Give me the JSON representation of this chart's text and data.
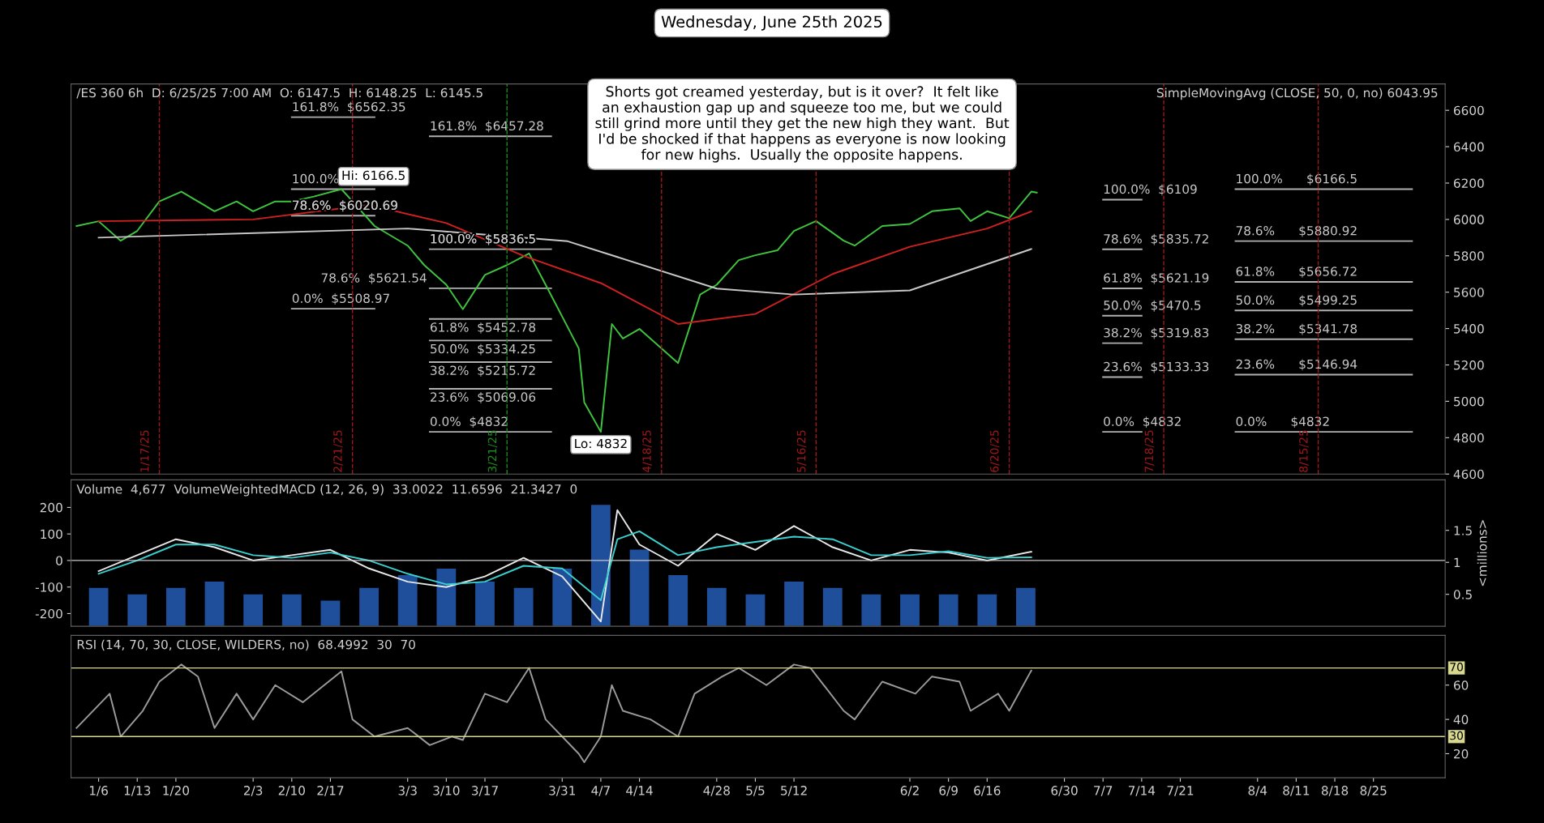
{
  "chart_data": [
    {
      "type": "line",
      "title": "Wednesday, June 25th 2025",
      "annotations": [
        "/ES 360 6h  D: 6/25/25 7:00 AM  O: 6147.5  H: 6148.25  L: 6145.5",
        "Shorts got creamed yesterday, but is it over?  It felt like\nan exhaustion gap up and squeeze too me, but we could\nstill grind more until they get the new high they want.  But\nI'd be shocked if that happens as everyone is now looking\nfor new highs.  Usually the opposite happens.",
        "SimpleMovingAvg (CLOSE, 50, 0, no) 6043.95",
        {
          "text": "Hi: 6166.5",
          "x": "2025-02-19",
          "y": 6166.5
        },
        {
          "text": "Lo: 4832",
          "x": "2025-04-07",
          "y": 4832
        }
      ],
      "series": [
        {
          "name": "161.8%  $6562.35",
          "color": "#b0b0b0",
          "x": [
            "2025-02-10",
            "2025-02-25"
          ],
          "values": [
            6562.35,
            6562.35
          ]
        },
        {
          "name": "100.0%",
          "color": "#b0b0b0",
          "x": [
            "2025-02-10",
            "2025-02-25"
          ],
          "values": [
            6166.5,
            6166.5
          ]
        },
        {
          "name": "78.6%  $6020.69",
          "color": "#b0b0b0",
          "x": [
            "2025-02-10",
            "2025-02-25"
          ],
          "values": [
            6020.69,
            6020.69
          ]
        },
        {
          "name": "0.0%  $5508.97",
          "color": "#b0b0b0",
          "x": [
            "2025-02-10",
            "2025-02-25"
          ],
          "values": [
            5508.97,
            5508.97
          ]
        },
        {
          "name": "161.8%  $6457.28",
          "color": "#b0b0b0",
          "x": [
            "2025-03-07",
            "2025-03-29"
          ],
          "values": [
            6457.28,
            6457.28
          ]
        },
        {
          "name": "100.0%  $5836.5",
          "color": "#b0b0b0",
          "x": [
            "2025-03-07",
            "2025-03-29"
          ],
          "values": [
            5836.5,
            5836.5
          ]
        },
        {
          "name": "78.6%  $5621.54",
          "color": "#b0b0b0",
          "x": [
            "2025-03-07",
            "2025-03-29"
          ],
          "values": [
            5621.54,
            5621.54
          ]
        },
        {
          "name": "61.8%  $5452.78",
          "color": "#b0b0b0",
          "x": [
            "2025-03-07",
            "2025-03-29"
          ],
          "values": [
            5452.78,
            5452.78
          ]
        },
        {
          "name": "50.0%  $5334.25",
          "color": "#b0b0b0",
          "x": [
            "2025-03-07",
            "2025-03-29"
          ],
          "values": [
            5334.25,
            5334.25
          ]
        },
        {
          "name": "38.2%  $5215.72",
          "color": "#b0b0b0",
          "x": [
            "2025-03-07",
            "2025-03-29"
          ],
          "values": [
            5215.72,
            5215.72
          ]
        },
        {
          "name": "23.6%  $5069.06",
          "color": "#b0b0b0",
          "x": [
            "2025-03-07",
            "2025-03-29"
          ],
          "values": [
            5069.06,
            5069.06
          ]
        },
        {
          "name": "0.0%  $4832",
          "color": "#b0b0b0",
          "x": [
            "2025-03-07",
            "2025-03-29"
          ],
          "values": [
            4832,
            4832
          ]
        },
        {
          "name": "100.0%  $6109",
          "color": "#b0b0b0",
          "x": [
            "2025-07-07",
            "2025-07-14"
          ],
          "values": [
            6109,
            6109
          ]
        },
        {
          "name": "78.6%  $5835.72",
          "color": "#b0b0b0",
          "x": [
            "2025-07-07",
            "2025-07-14"
          ],
          "values": [
            5835.72,
            5835.72
          ]
        },
        {
          "name": "61.8%  $5621.19",
          "color": "#b0b0b0",
          "x": [
            "2025-07-07",
            "2025-07-14"
          ],
          "values": [
            5621.19,
            5621.19
          ]
        },
        {
          "name": "50.0%  $5470.5",
          "color": "#b0b0b0",
          "x": [
            "2025-07-07",
            "2025-07-14"
          ],
          "values": [
            5470.5,
            5470.5
          ]
        },
        {
          "name": "38.2%  $5319.83",
          "color": "#b0b0b0",
          "x": [
            "2025-07-07",
            "2025-07-14"
          ],
          "values": [
            5319.83,
            5319.83
          ]
        },
        {
          "name": "23.6%  $5133.33",
          "color": "#b0b0b0",
          "x": [
            "2025-07-07",
            "2025-07-14"
          ],
          "values": [
            5133.33,
            5133.33
          ]
        },
        {
          "name": "0.0%  $4832",
          "color": "#b0b0b0",
          "x": [
            "2025-07-07",
            "2025-07-14"
          ],
          "values": [
            4832,
            4832
          ]
        },
        {
          "name": "100.0%      $6166.5",
          "color": "#b0b0b0",
          "x": [
            "2025-07-31",
            "2025-09-01"
          ],
          "values": [
            6166.5,
            6166.5
          ]
        },
        {
          "name": "78.6%      $5880.92",
          "color": "#b0b0b0",
          "x": [
            "2025-07-31",
            "2025-09-01"
          ],
          "values": [
            5880.92,
            5880.92
          ]
        },
        {
          "name": "61.8%      $5656.72",
          "color": "#b0b0b0",
          "x": [
            "2025-07-31",
            "2025-09-01"
          ],
          "values": [
            5656.72,
            5656.72
          ]
        },
        {
          "name": "50.0%      $5499.25",
          "color": "#b0b0b0",
          "x": [
            "2025-07-31",
            "2025-09-01"
          ],
          "values": [
            5499.25,
            5499.25
          ]
        },
        {
          "name": "38.2%      $5341.78",
          "color": "#b0b0b0",
          "x": [
            "2025-07-31",
            "2025-09-01"
          ],
          "values": [
            5341.78,
            5341.78
          ]
        },
        {
          "name": "23.6%      $5146.94",
          "color": "#b0b0b0",
          "x": [
            "2025-07-31",
            "2025-09-01"
          ],
          "values": [
            5146.94,
            5146.94
          ]
        },
        {
          "name": "0.0%      $4832",
          "color": "#b0b0b0",
          "x": [
            "2025-07-31",
            "2025-09-01"
          ],
          "values": [
            4832,
            4832
          ]
        },
        {
          "color": "#3ec43e",
          "x": [
            "2025-01-02",
            "2025-01-06",
            "2025-01-10",
            "2025-01-13",
            "2025-01-17",
            "2025-01-21",
            "2025-01-27",
            "2025-01-31",
            "2025-02-03",
            "2025-02-07",
            "2025-02-10",
            "2025-02-14",
            "2025-02-19",
            "2025-02-21",
            "2025-02-25",
            "2025-03-03",
            "2025-03-06",
            "2025-03-10",
            "2025-03-13",
            "2025-03-17",
            "2025-03-21",
            "2025-03-25",
            "2025-03-28",
            "2025-04-03",
            "2025-04-04",
            "2025-04-07",
            "2025-04-09",
            "2025-04-11",
            "2025-04-14",
            "2025-04-21",
            "2025-04-25",
            "2025-04-28",
            "2025-05-02",
            "2025-05-05",
            "2025-05-09",
            "2025-05-12",
            "2025-05-16",
            "2025-05-21",
            "2025-05-23",
            "2025-05-28",
            "2025-06-02",
            "2025-06-06",
            "2025-06-11",
            "2025-06-13",
            "2025-06-16",
            "2025-06-20",
            "2025-06-24",
            "2025-06-25"
          ],
          "values": [
            5964,
            5990,
            5883,
            5937,
            6099,
            6153,
            6045,
            6099,
            6045,
            6099,
            6099,
            6126,
            6166.5,
            6099,
            5964,
            5856,
            5749,
            5641,
            5506,
            5695,
            5749,
            5813,
            5641,
            5291,
            4994,
            4832,
            5425,
            5345,
            5398,
            5210,
            5587,
            5641,
            5776,
            5803,
            5830,
            5937,
            5991,
            5883,
            5856,
            5964,
            5975,
            6045,
            6061,
            5991,
            6045,
            6007,
            6153,
            6147.5
          ]
        },
        {
          "color": "#d02020",
          "x": [
            "2025-01-06",
            "2025-02-03",
            "2025-02-24",
            "2025-03-10",
            "2025-03-24",
            "2025-04-07",
            "2025-04-21",
            "2025-05-05",
            "2025-05-19",
            "2025-06-02",
            "2025-06-16",
            "2025-06-24"
          ],
          "values": [
            5990,
            6000,
            6080,
            5980,
            5800,
            5650,
            5425,
            5480,
            5700,
            5850,
            5950,
            6044
          ]
        },
        {
          "color": "#c8c8c8",
          "x": [
            "2025-01-06",
            "2025-03-03",
            "2025-04-01",
            "2025-04-28",
            "2025-05-12",
            "2025-06-02",
            "2025-06-24"
          ],
          "values": [
            5900,
            5950,
            5880,
            5620,
            5587,
            5610,
            5837
          ]
        }
      ],
      "xlim": [
        "2025-01-01",
        "2025-09-07"
      ],
      "ylim": [
        4600,
        6745
      ],
      "yticks": [
        4600,
        4800,
        5000,
        5200,
        5400,
        5600,
        5800,
        6000,
        6200,
        6400,
        6600
      ],
      "tick_labels": "y",
      "ref_lines": [
        {
          "axis": "x",
          "value": "2025-01-17",
          "label": "1/17/25",
          "color": "#a01818",
          "line_style": "dashed"
        },
        {
          "axis": "x",
          "value": "2025-02-21",
          "label": "2/21/25",
          "color": "#a01818",
          "line_style": "dashed"
        },
        {
          "axis": "x",
          "value": "2025-03-21",
          "label": "3/21/25",
          "color": "#1e8a1e",
          "line_style": "dashed"
        },
        {
          "axis": "x",
          "value": "2025-04-18",
          "label": "4/18/25",
          "color": "#a01818",
          "line_style": "dashed"
        },
        {
          "axis": "x",
          "value": "2025-05-16",
          "label": "5/16/25",
          "color": "#a01818",
          "line_style": "dashed"
        },
        {
          "axis": "x",
          "value": "2025-06-20",
          "label": "6/20/25",
          "color": "#a01818",
          "line_style": "dashed"
        },
        {
          "axis": "x",
          "value": "2025-07-18",
          "label": "7/18/25",
          "color": "#a01818",
          "line_style": "dashed"
        },
        {
          "axis": "x",
          "value": "2025-08-15",
          "label": "8/15/25",
          "color": "#a01818",
          "line_style": "dashed"
        }
      ]
    },
    {
      "type": "line",
      "y2label": "<millions>",
      "annotations": [
        "Volume  4,677  VolumeWeightedMACD (12, 26, 9)  33.0022  11.6596  21.3427  0"
      ],
      "series": [
        {
          "type": "bar",
          "axis": "y2",
          "color": "#1f4e9a",
          "x": [
            "2025-01-06",
            "2025-01-13",
            "2025-01-20",
            "2025-01-27",
            "2025-02-03",
            "2025-02-10",
            "2025-02-17",
            "2025-02-24",
            "2025-03-03",
            "2025-03-10",
            "2025-03-17",
            "2025-03-24",
            "2025-03-31",
            "2025-04-07",
            "2025-04-14",
            "2025-04-21",
            "2025-04-28",
            "2025-05-05",
            "2025-05-12",
            "2025-05-19",
            "2025-05-26",
            "2025-06-02",
            "2025-06-09",
            "2025-06-16",
            "2025-06-23"
          ],
          "values": [
            0.6,
            0.5,
            0.6,
            0.7,
            0.5,
            0.5,
            0.4,
            0.6,
            0.8,
            0.9,
            0.7,
            0.6,
            0.9,
            1.9,
            1.2,
            0.8,
            0.6,
            0.5,
            0.7,
            0.6,
            0.5,
            0.5,
            0.5,
            0.5,
            0.6
          ]
        },
        {
          "color": "#e8e8e8",
          "x": [
            "2025-01-06",
            "2025-01-13",
            "2025-01-20",
            "2025-01-27",
            "2025-02-03",
            "2025-02-10",
            "2025-02-17",
            "2025-02-24",
            "2025-03-03",
            "2025-03-10",
            "2025-03-17",
            "2025-03-24",
            "2025-03-31",
            "2025-04-07",
            "2025-04-10",
            "2025-04-14",
            "2025-04-21",
            "2025-04-28",
            "2025-05-05",
            "2025-05-12",
            "2025-05-19",
            "2025-05-26",
            "2025-06-02",
            "2025-06-09",
            "2025-06-16",
            "2025-06-24"
          ],
          "values": [
            -40,
            20,
            80,
            50,
            0,
            20,
            40,
            -30,
            -80,
            -100,
            -60,
            10,
            -60,
            -230,
            190,
            60,
            -20,
            100,
            40,
            130,
            50,
            0,
            40,
            30,
            0,
            33
          ]
        },
        {
          "color": "#3ad0d0",
          "x": [
            "2025-01-06",
            "2025-01-13",
            "2025-01-20",
            "2025-01-27",
            "2025-02-03",
            "2025-02-10",
            "2025-02-17",
            "2025-02-24",
            "2025-03-03",
            "2025-03-10",
            "2025-03-17",
            "2025-03-24",
            "2025-03-31",
            "2025-04-07",
            "2025-04-10",
            "2025-04-14",
            "2025-04-21",
            "2025-04-28",
            "2025-05-05",
            "2025-05-12",
            "2025-05-19",
            "2025-05-26",
            "2025-06-02",
            "2025-06-09",
            "2025-06-16",
            "2025-06-24"
          ],
          "values": [
            -50,
            0,
            60,
            60,
            20,
            10,
            30,
            0,
            -50,
            -90,
            -80,
            -20,
            -30,
            -150,
            80,
            110,
            20,
            50,
            70,
            90,
            80,
            20,
            20,
            35,
            10,
            12
          ]
        }
      ],
      "xlim": [
        "2025-01-01",
        "2025-09-07"
      ],
      "ylim": [
        -248,
        304
      ],
      "yticks": [
        -200,
        -100,
        0,
        100,
        200
      ],
      "y2lim": [
        0,
        2.29
      ],
      "y2ticks": [
        0.5,
        1,
        1.5
      ],
      "tick_labels": "y",
      "ref_lines": [
        {
          "axis": "y",
          "value": 0,
          "color": "#c8c8c8",
          "line_style": "solid"
        }
      ]
    },
    {
      "type": "line",
      "annotations": [
        "RSI (14, 70, 30, CLOSE, WILDERS, no)  68.4992  30  70"
      ],
      "series": [
        {
          "color": "#9a9a9a",
          "x": [
            "2025-01-02",
            "2025-01-08",
            "2025-01-10",
            "2025-01-14",
            "2025-01-17",
            "2025-01-21",
            "2025-01-24",
            "2025-01-27",
            "2025-01-31",
            "2025-02-03",
            "2025-02-07",
            "2025-02-12",
            "2025-02-19",
            "2025-02-21",
            "2025-02-25",
            "2025-03-03",
            "2025-03-07",
            "2025-03-11",
            "2025-03-13",
            "2025-03-17",
            "2025-03-21",
            "2025-03-25",
            "2025-03-28",
            "2025-04-03",
            "2025-04-04",
            "2025-04-07",
            "2025-04-09",
            "2025-04-11",
            "2025-04-16",
            "2025-04-21",
            "2025-04-24",
            "2025-04-29",
            "2025-05-02",
            "2025-05-07",
            "2025-05-12",
            "2025-05-15",
            "2025-05-21",
            "2025-05-23",
            "2025-05-28",
            "2025-06-03",
            "2025-06-06",
            "2025-06-11",
            "2025-06-13",
            "2025-06-18",
            "2025-06-20",
            "2025-06-24"
          ],
          "values": [
            35,
            55,
            30,
            45,
            62,
            72,
            65,
            35,
            55,
            40,
            60,
            50,
            68,
            40,
            30,
            35,
            25,
            30,
            28,
            55,
            50,
            70,
            40,
            20,
            15,
            30,
            60,
            45,
            40,
            30,
            55,
            65,
            70,
            60,
            72,
            70,
            45,
            40,
            62,
            55,
            65,
            62,
            45,
            55,
            45,
            68.4992
          ]
        }
      ],
      "xlim": [
        "2025-01-01",
        "2025-09-07"
      ],
      "ylim": [
        6,
        89
      ],
      "yticks": [
        20,
        40,
        60
      ],
      "xticks": [
        {
          "value": "2025-01-06",
          "label": "1/6"
        },
        {
          "value": "2025-01-13",
          "label": "1/13"
        },
        {
          "value": "2025-01-20",
          "label": "1/20"
        },
        {
          "value": "2025-02-03",
          "label": "2/3"
        },
        {
          "value": "2025-02-10",
          "label": "2/10"
        },
        {
          "value": "2025-02-17",
          "label": "2/17"
        },
        {
          "value": "2025-03-03",
          "label": "3/3"
        },
        {
          "value": "2025-03-10",
          "label": "3/10"
        },
        {
          "value": "2025-03-17",
          "label": "3/17"
        },
        {
          "value": "2025-03-31",
          "label": "3/31"
        },
        {
          "value": "2025-04-07",
          "label": "4/7"
        },
        {
          "value": "2025-04-14",
          "label": "4/14"
        },
        {
          "value": "2025-04-28",
          "label": "4/28"
        },
        {
          "value": "2025-05-05",
          "label": "5/5"
        },
        {
          "value": "2025-05-12",
          "label": "5/12"
        },
        {
          "value": "2025-06-02",
          "label": "6/2"
        },
        {
          "value": "2025-06-09",
          "label": "6/9"
        },
        {
          "value": "2025-06-16",
          "label": "6/16"
        },
        {
          "value": "2025-06-30",
          "label": "6/30"
        },
        {
          "value": "2025-07-07",
          "label": "7/7"
        },
        {
          "value": "2025-07-14",
          "label": "7/14"
        },
        {
          "value": "2025-07-21",
          "label": "7/21"
        },
        {
          "value": "2025-08-04",
          "label": "8/4"
        },
        {
          "value": "2025-08-11",
          "label": "8/11"
        },
        {
          "value": "2025-08-18",
          "label": "8/18"
        },
        {
          "value": "2025-08-25",
          "label": "8/25"
        }
      ],
      "ref_lines": [
        {
          "axis": "y",
          "value": 70,
          "label": "70",
          "color": "#d8d890",
          "line_style": "solid"
        },
        {
          "axis": "y",
          "value": 30,
          "label": "30",
          "color": "#d8d890",
          "line_style": "solid"
        }
      ]
    }
  ]
}
